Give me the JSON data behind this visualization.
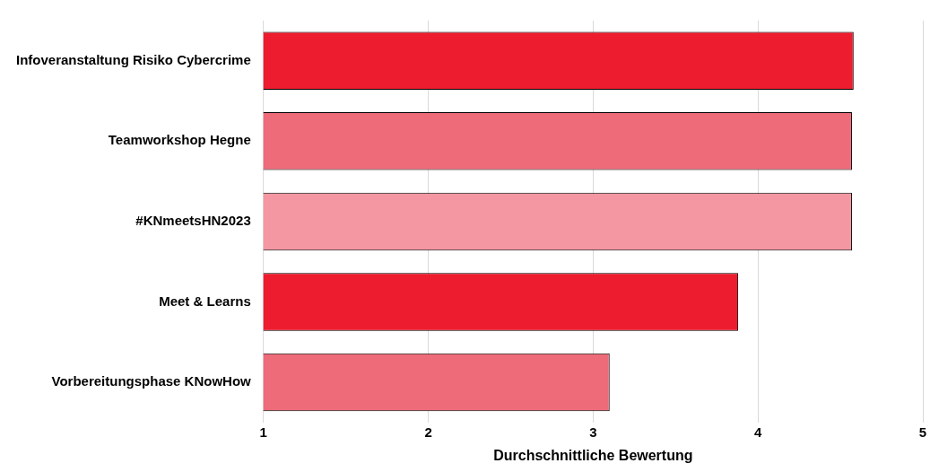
{
  "chart_data": {
    "type": "bar",
    "orientation": "horizontal",
    "xlabel": "Durchschnittliche Bewertung",
    "categories": [
      "Infoveranstaltung Risiko Cybercrime",
      "Teamworkshop Hegne",
      "#KNmeetsHN2023",
      "Meet & Learns",
      "Vorbereitungsphase KNowHow"
    ],
    "values": [
      4.58,
      4.57,
      4.57,
      3.88,
      3.1
    ],
    "colors": [
      "#ed1c2e",
      "#ee6b7a",
      "#f497a2",
      "#ed1c2e",
      "#ee6b7a"
    ],
    "xlim": [
      1,
      5
    ],
    "xticks": [
      1,
      2,
      3,
      4,
      5
    ],
    "grid": "x",
    "legend": false
  }
}
